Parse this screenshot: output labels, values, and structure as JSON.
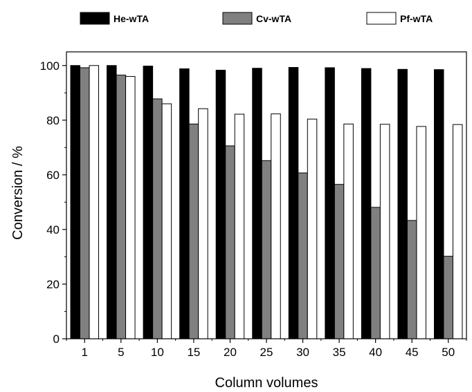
{
  "chart_data": {
    "type": "bar",
    "categories": [
      "1",
      "5",
      "10",
      "15",
      "20",
      "25",
      "30",
      "35",
      "40",
      "45",
      "50"
    ],
    "series": [
      {
        "name": "He-wTA",
        "values": [
          100,
          100,
          99.8,
          98.8,
          98.3,
          99.0,
          99.3,
          99.2,
          98.9,
          98.6,
          98.5
        ]
      },
      {
        "name": "Cv-wTA",
        "values": [
          99.2,
          96.5,
          87.8,
          78.6,
          70.6,
          65.2,
          60.7,
          56.5,
          48.1,
          43.3,
          30.2
        ]
      },
      {
        "name": "Pf-wTA",
        "values": [
          100,
          96,
          86,
          84.2,
          82.2,
          82.3,
          80.4,
          78.6,
          78.5,
          77.7,
          78.4
        ]
      }
    ],
    "xlabel": "Column volumes",
    "ylabel": "Conversion / %",
    "ylim": [
      0,
      105
    ],
    "yticks": [
      0,
      20,
      40,
      60,
      80,
      100
    ],
    "legend_position": "top",
    "grid": false,
    "colors": {
      "He-wTA": "#000000",
      "Cv-wTA": "#808080",
      "Pf-wTA": "#ffffff"
    }
  }
}
